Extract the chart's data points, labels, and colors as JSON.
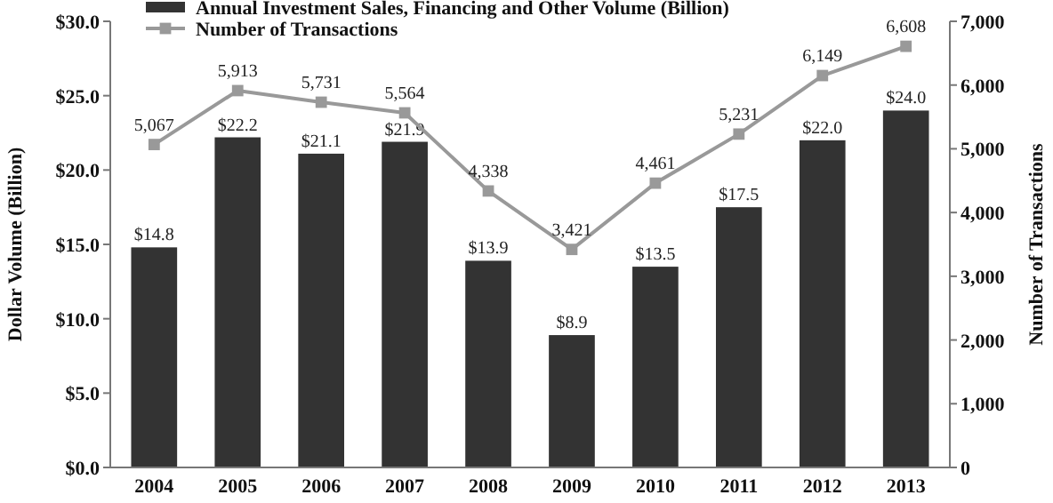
{
  "chart_data": {
    "type": "bar",
    "ylabel": "Dollar Volume (Billion)",
    "y2label": "Number of Transactions",
    "categories": [
      "2004",
      "2005",
      "2006",
      "2007",
      "2008",
      "2009",
      "2010",
      "2011",
      "2012",
      "2013"
    ],
    "series": [
      {
        "name": "Annual Investment Sales, Financing and Other Volume (Billion)",
        "color": "#333333",
        "values": [
          14.8,
          22.2,
          21.1,
          21.9,
          13.9,
          8.9,
          13.5,
          17.5,
          22.0,
          24.0
        ],
        "value_labels": [
          "$14.8",
          "$22.2",
          "$21.1",
          "$21.9",
          "$13.9",
          "$8.9",
          "$13.5",
          "$17.5",
          "$22.0",
          "$24.0"
        ]
      },
      {
        "name": "Number of Transactions",
        "type": "line",
        "axis": "y2",
        "color": "#999999",
        "marker": "square",
        "values": [
          5067,
          5913,
          5731,
          5564,
          4338,
          3421,
          4461,
          5231,
          6149,
          6608
        ],
        "value_labels": [
          "5,067",
          "5,913",
          "5,731",
          "5,564",
          "4,338",
          "3,421",
          "4,461",
          "5,231",
          "6,149",
          "6,608"
        ]
      }
    ],
    "ylim": [
      0,
      30
    ],
    "yticks": [
      {
        "value": 0,
        "label": "$0.0"
      },
      {
        "value": 5,
        "label": "$5.0"
      },
      {
        "value": 10,
        "label": "$10.0"
      },
      {
        "value": 15,
        "label": "$15.0"
      },
      {
        "value": 20,
        "label": "$20.0"
      },
      {
        "value": 25,
        "label": "$25.0"
      },
      {
        "value": 30,
        "label": "$30.0"
      }
    ],
    "y2lim": [
      0,
      7000
    ],
    "y2ticks": [
      0,
      {
        "value": 1000,
        "label": "1,000"
      },
      {
        "value": 2000,
        "label": "2,000"
      },
      {
        "value": 3000,
        "label": "3,000"
      },
      {
        "value": 4000,
        "label": "4,000"
      },
      {
        "value": 5000,
        "label": "5,000"
      },
      {
        "value": 6000,
        "label": "6,000"
      },
      {
        "value": 7000,
        "label": "7,000"
      }
    ],
    "legend": "top left",
    "grid": false
  }
}
